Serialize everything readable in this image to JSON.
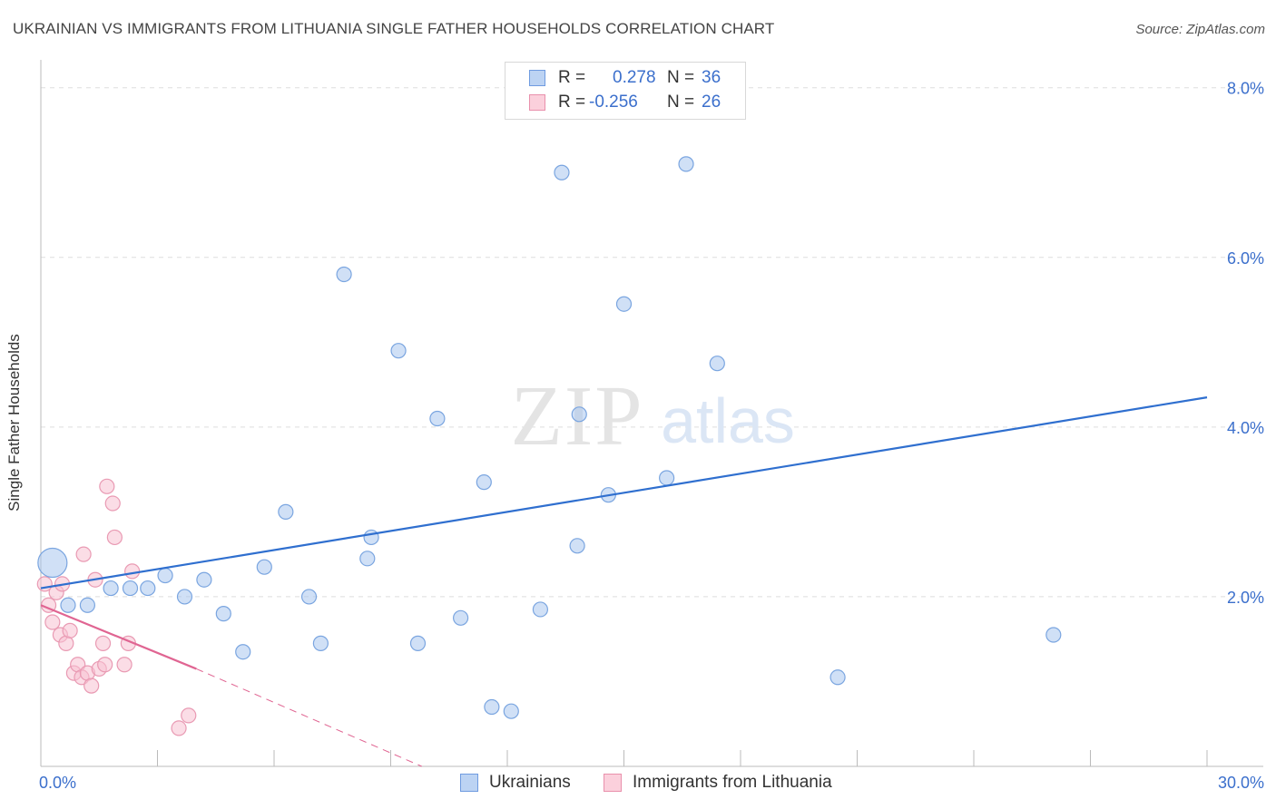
{
  "title": "UKRAINIAN VS IMMIGRANTS FROM LITHUANIA SINGLE FATHER HOUSEHOLDS CORRELATION CHART",
  "source": "Source: ZipAtlas.com",
  "watermark": {
    "zip": "ZIP",
    "atlas": "atlas"
  },
  "legend_top": [
    {
      "r_label": "R =",
      "r_value": "0.278",
      "n_label": "N =",
      "n_value": "36",
      "color": "#a9c6ef",
      "border": "#6f9be0"
    },
    {
      "r_label": "R =",
      "r_value": "-0.256",
      "n_label": "N =",
      "n_value": "26",
      "color": "#f8c1d1",
      "border": "#e990ac"
    }
  ],
  "legend_bottom": [
    {
      "label": "Ukrainians",
      "color": "#a9c6ef",
      "border": "#6f9be0"
    },
    {
      "label": "Immigrants from Lithuania",
      "color": "#f8c1d1",
      "border": "#e990ac"
    }
  ],
  "colors": {
    "blue_fill": "#a9c6ef",
    "blue_stroke": "#7aa5e0",
    "blue_line": "#2f6fcf",
    "pink_fill": "#f8c1d1",
    "pink_stroke": "#e99ab3",
    "pink_line": "#e06592",
    "grid": "#dddddd",
    "tick_text": "#3b6fcc",
    "axis": "#bbbbbb"
  },
  "chart_data": {
    "type": "scatter",
    "title": "UKRAINIAN VS IMMIGRANTS FROM LITHUANIA SINGLE FATHER HOUSEHOLDS CORRELATION CHART",
    "xlabel": "",
    "ylabel": "Single Father Households",
    "xlim": [
      0,
      30
    ],
    "ylim": [
      0,
      8.2
    ],
    "y_ticks": [
      2.0,
      4.0,
      6.0,
      8.0
    ],
    "y_tick_labels": [
      "2.0%",
      "4.0%",
      "6.0%",
      "8.0%"
    ],
    "x_tick_labels": [
      "0.0%",
      "30.0%"
    ],
    "grid": true,
    "series": [
      {
        "name": "Ukrainians",
        "r": 0.278,
        "n": 36,
        "points": [
          [
            0.3,
            2.4,
            "large"
          ],
          [
            0.7,
            1.9
          ],
          [
            1.2,
            1.9
          ],
          [
            1.8,
            2.1
          ],
          [
            2.3,
            2.1
          ],
          [
            2.75,
            2.1
          ],
          [
            3.2,
            2.25
          ],
          [
            3.7,
            2.0
          ],
          [
            4.2,
            2.2
          ],
          [
            4.7,
            1.8
          ],
          [
            5.2,
            1.35
          ],
          [
            5.75,
            2.35
          ],
          [
            6.3,
            3.0
          ],
          [
            6.9,
            2.0
          ],
          [
            7.2,
            1.45
          ],
          [
            7.8,
            5.8
          ],
          [
            8.4,
            2.45
          ],
          [
            8.5,
            2.7
          ],
          [
            9.2,
            4.9
          ],
          [
            9.7,
            1.45
          ],
          [
            10.2,
            4.1
          ],
          [
            10.8,
            1.75
          ],
          [
            11.4,
            3.35
          ],
          [
            11.6,
            0.7
          ],
          [
            12.1,
            0.65
          ],
          [
            12.85,
            1.85
          ],
          [
            13.4,
            7.0
          ],
          [
            13.8,
            2.6
          ],
          [
            13.85,
            4.15
          ],
          [
            14.6,
            3.2
          ],
          [
            15.0,
            5.45
          ],
          [
            16.1,
            3.4
          ],
          [
            16.6,
            7.1
          ],
          [
            17.4,
            4.75
          ],
          [
            20.5,
            1.05
          ],
          [
            26.05,
            1.55
          ]
        ]
      },
      {
        "name": "Immigrants from Lithuania",
        "r": -0.256,
        "n": 26,
        "points": [
          [
            0.1,
            2.15
          ],
          [
            0.2,
            1.9
          ],
          [
            0.3,
            1.7
          ],
          [
            0.4,
            2.05
          ],
          [
            0.5,
            1.55
          ],
          [
            0.55,
            2.15
          ],
          [
            0.65,
            1.45
          ],
          [
            0.75,
            1.6
          ],
          [
            0.85,
            1.1
          ],
          [
            0.95,
            1.2
          ],
          [
            1.05,
            1.05
          ],
          [
            1.1,
            2.5
          ],
          [
            1.2,
            1.1
          ],
          [
            1.3,
            0.95
          ],
          [
            1.4,
            2.2
          ],
          [
            1.5,
            1.15
          ],
          [
            1.6,
            1.45
          ],
          [
            1.65,
            1.2
          ],
          [
            1.7,
            3.3
          ],
          [
            1.85,
            3.1
          ],
          [
            1.9,
            2.7
          ],
          [
            2.15,
            1.2
          ],
          [
            2.25,
            1.45
          ],
          [
            2.35,
            2.3
          ],
          [
            3.55,
            0.45
          ],
          [
            3.8,
            0.6
          ]
        ]
      }
    ],
    "trend_lines": [
      {
        "series": "Ukrainians",
        "x": [
          0,
          30
        ],
        "y": [
          2.1,
          4.35
        ],
        "style": "solid"
      },
      {
        "series": "Immigrants from Lithuania",
        "x": [
          0,
          4.0
        ],
        "y": [
          1.9,
          1.15
        ],
        "style": "solid"
      },
      {
        "series": "Immigrants from Lithuania",
        "x": [
          4.0,
          9.8
        ],
        "y": [
          1.15,
          0.0
        ],
        "style": "dashed"
      }
    ]
  }
}
